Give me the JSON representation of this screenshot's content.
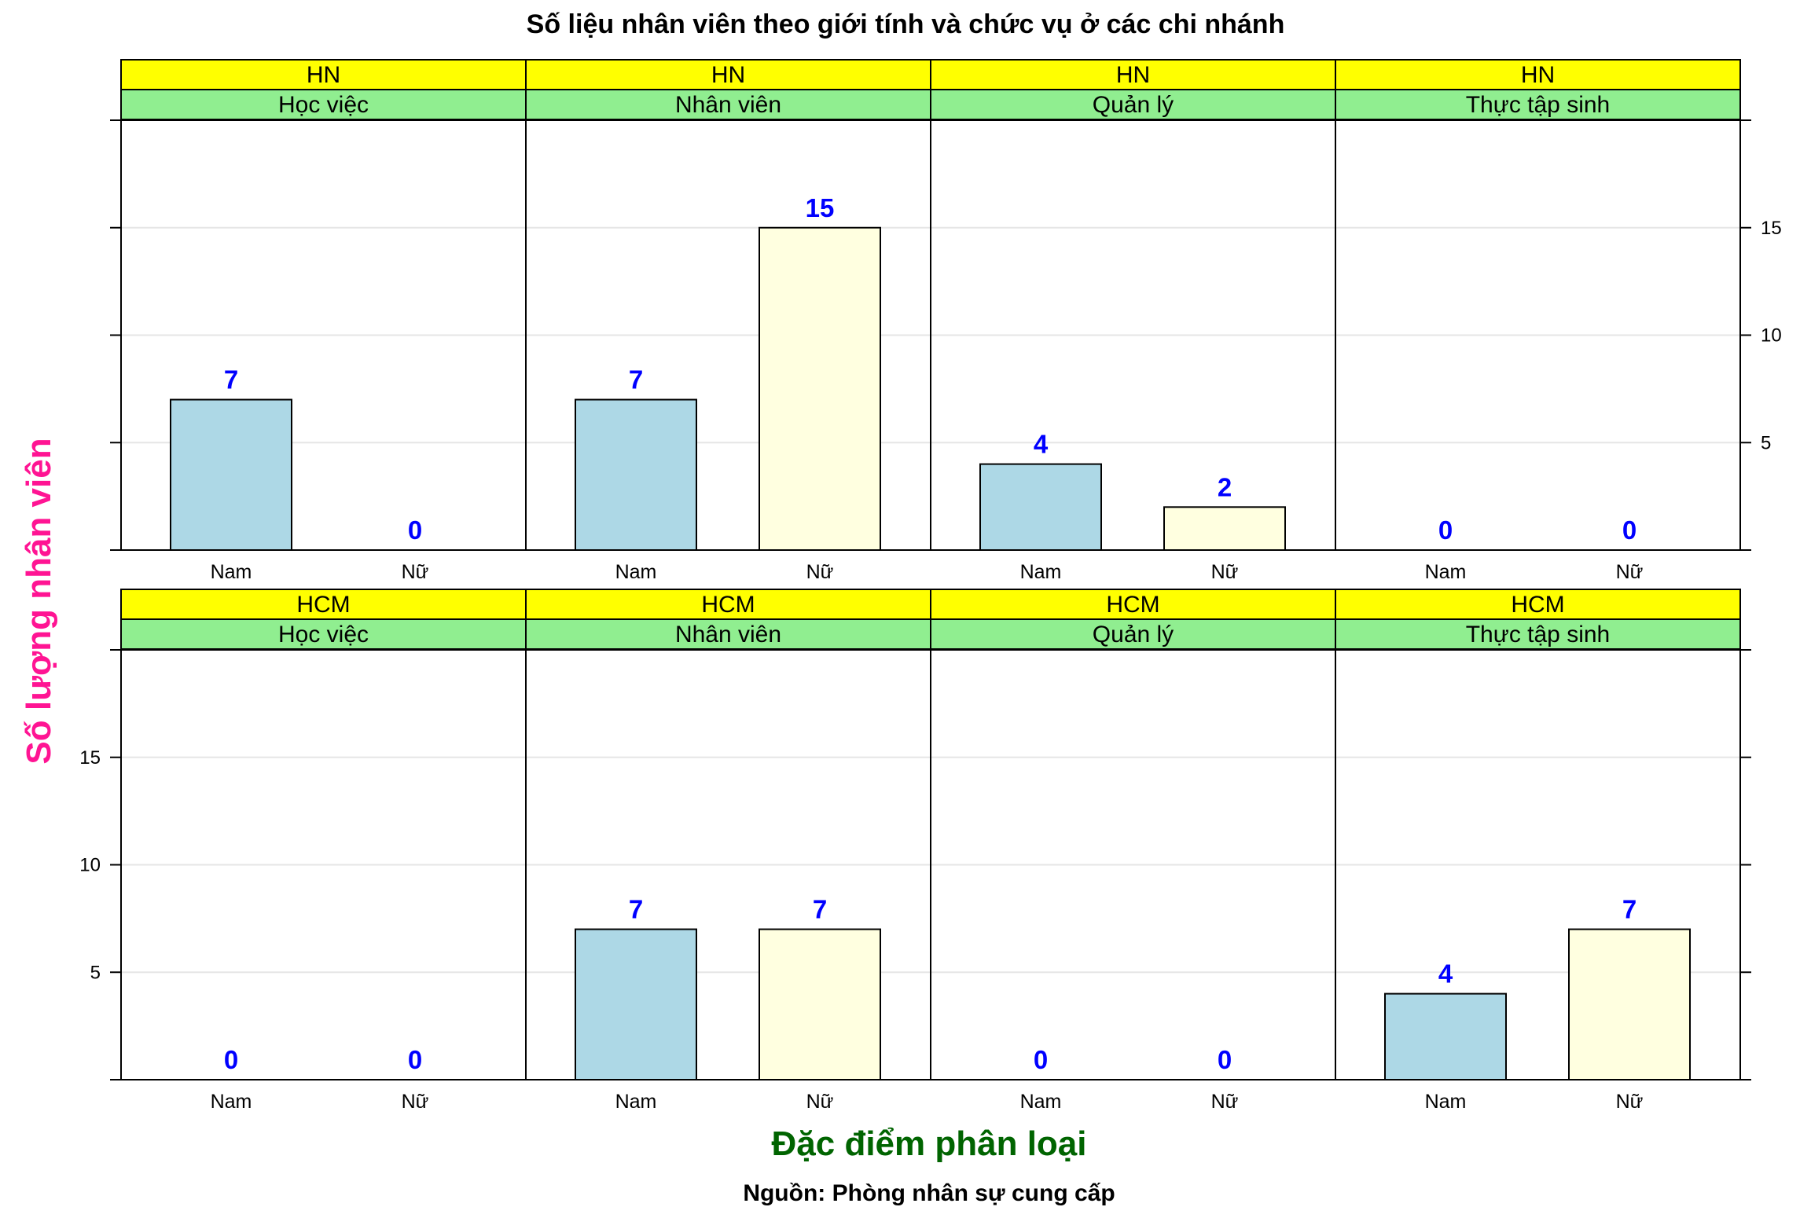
{
  "chart_data": {
    "type": "bar",
    "title": "Số liệu nhân viên theo giới tính và chức vụ ở các chi nhánh",
    "xlabel": "Đặc điểm phân loại",
    "ylabel": "Số lượng nhân viên",
    "caption": "Nguồn: Phòng nhân sự cung cấp",
    "categories": [
      "Nam",
      "Nữ"
    ],
    "ylim": [
      0,
      20
    ],
    "yticks": [
      5,
      10,
      15
    ],
    "grid": true,
    "layout": "facet grid, 2 rows × 4 columns",
    "panels": [
      {
        "branch": "HN",
        "position": "Học việc",
        "values": [
          7,
          0
        ]
      },
      {
        "branch": "HN",
        "position": "Nhân viên",
        "values": [
          7,
          15
        ]
      },
      {
        "branch": "HN",
        "position": "Quản lý",
        "values": [
          4,
          2
        ]
      },
      {
        "branch": "HN",
        "position": "Thực tập sinh",
        "values": [
          0,
          0
        ]
      },
      {
        "branch": "HCM",
        "position": "Học việc",
        "values": [
          0,
          0
        ]
      },
      {
        "branch": "HCM",
        "position": "Nhân viên",
        "values": [
          7,
          7
        ]
      },
      {
        "branch": "HCM",
        "position": "Quản lý",
        "values": [
          0,
          0
        ]
      },
      {
        "branch": "HCM",
        "position": "Thực tập sinh",
        "values": [
          4,
          7
        ]
      }
    ],
    "colors": {
      "Nam": "#add8e6",
      "Nữ": "#ffffe0",
      "strip_branch": "#ffff00",
      "strip_position": "#90ee90",
      "data_label": "#0000ff",
      "xlabel": "#006400",
      "ylabel": "#ff1493",
      "grid": "#e6e6e6"
    }
  }
}
